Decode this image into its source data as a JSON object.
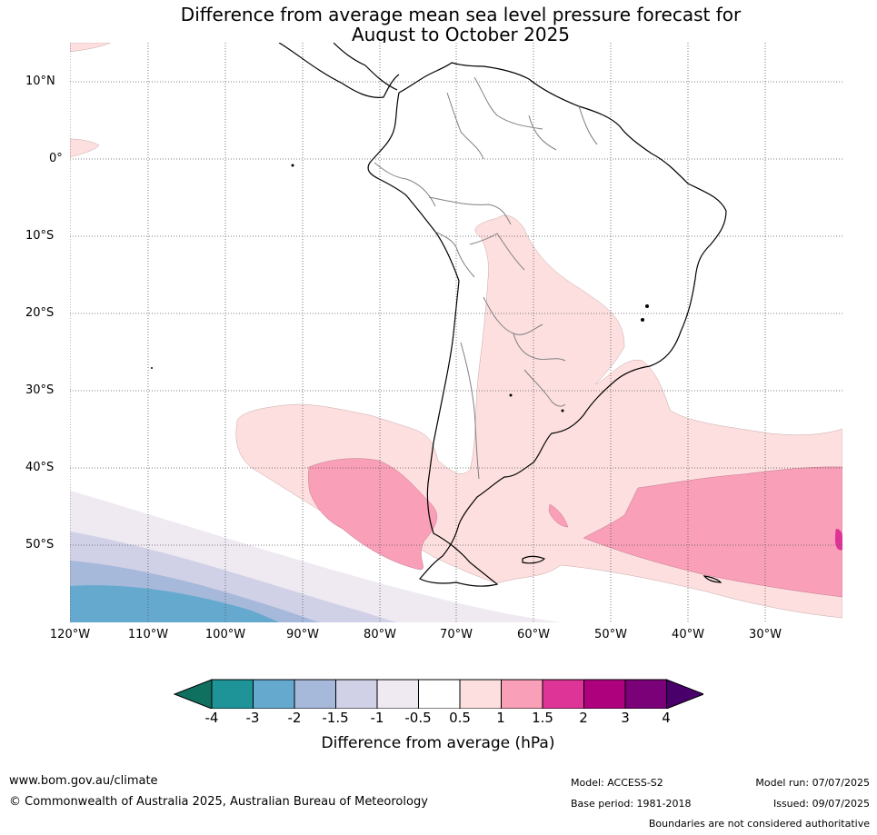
{
  "title": {
    "line1": "Difference from average mean sea level pressure forecast for",
    "line2": "August to October 2025"
  },
  "map": {
    "latitude_labels": [
      "10°N",
      "0°",
      "10°S",
      "20°S",
      "30°S",
      "40°S",
      "50°S"
    ],
    "longitude_labels": [
      "120°W",
      "110°W",
      "100°W",
      "90°W",
      "80°W",
      "70°W",
      "60°W",
      "50°W",
      "40°W",
      "30°W"
    ],
    "colors": {
      "ocean": "#ffffff",
      "land_outline": "#000000",
      "borders": "#808080",
      "gridlines": "#555555"
    }
  },
  "colorbar": {
    "title": "Difference from average (hPa)",
    "ticks": [
      "-4",
      "-3",
      "-2",
      "-1.5",
      "-1",
      "-0.5",
      "0.5",
      "1",
      "1.5",
      "2",
      "3",
      "4"
    ],
    "colors": [
      "#0f7060",
      "#1e9398",
      "#65a9cf",
      "#a6b9da",
      "#d0d1e6",
      "#efe9f2",
      "#ffffff",
      "#fddfdf",
      "#f99fb8",
      "#de3497",
      "#ae017e",
      "#7a0177",
      "#49006a"
    ]
  },
  "footer": {
    "website": "www.bom.gov.au/climate",
    "copyright": "© Commonwealth of Australia 2025, Australian Bureau of Meteorology",
    "model": "Model: ACCESS-S2",
    "base_period": "Base period: 1981-2018",
    "model_run": "Model run: 07/07/2025",
    "issued": "Issued: 09/07/2025",
    "disclaimer": "Boundaries are not considered authoritative"
  }
}
